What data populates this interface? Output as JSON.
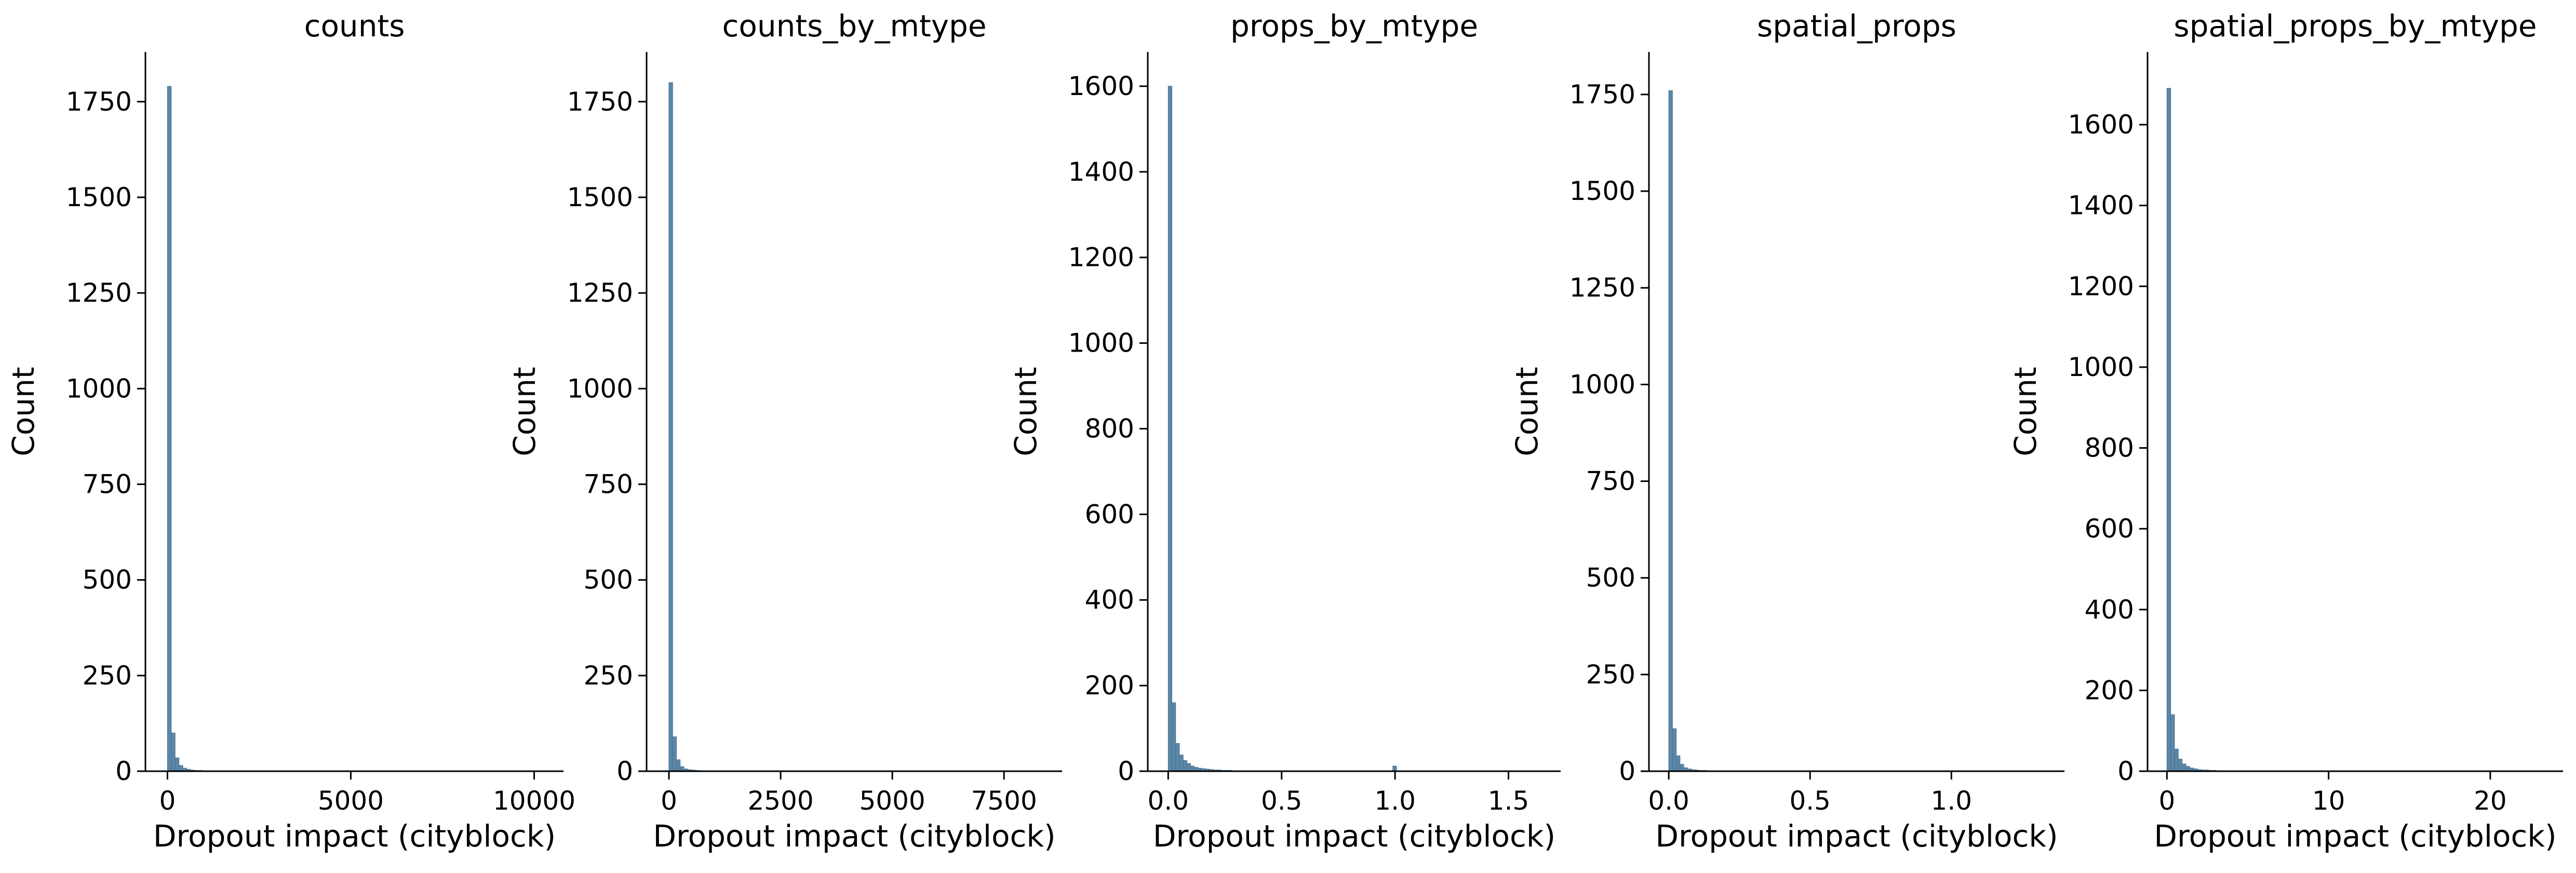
{
  "chart_data": [
    {
      "type": "bar",
      "title": "counts",
      "xlabel": "Dropout impact (cityblock)",
      "ylabel": "Count",
      "xlim": [
        -600,
        10800
      ],
      "ylim": [
        0,
        1880
      ],
      "xticks": [
        0,
        5000,
        10000
      ],
      "xtick_labels": [
        "0",
        "5000",
        "10000"
      ],
      "yticks": [
        0,
        250,
        500,
        750,
        1000,
        1250,
        1500,
        1750
      ],
      "ytick_labels": [
        "0",
        "250",
        "500",
        "750",
        "1000",
        "1250",
        "1500",
        "1750"
      ],
      "bin_start": 0,
      "bin_width": 105,
      "values": [
        1790,
        100,
        35,
        15,
        8,
        5,
        3,
        2,
        2,
        1,
        1,
        1,
        1,
        0,
        0,
        0,
        0,
        0,
        0,
        0,
        0,
        0,
        0,
        0,
        0,
        0,
        0,
        0,
        0,
        0,
        0,
        0,
        0,
        0,
        0,
        0,
        0,
        0,
        0,
        0,
        0,
        0,
        0,
        0,
        0,
        0,
        0,
        0,
        0,
        0,
        0,
        0,
        0,
        0,
        0,
        0,
        0,
        0,
        0,
        0,
        0,
        0,
        0,
        0,
        0,
        0,
        0,
        0,
        0,
        0,
        0,
        0,
        0,
        0,
        0,
        0,
        0,
        0,
        0,
        0,
        0,
        0,
        0,
        0,
        0,
        0,
        0,
        0,
        0,
        0,
        0,
        0,
        0,
        0,
        0,
        0,
        0,
        0,
        0,
        1
      ]
    },
    {
      "type": "bar",
      "title": "counts_by_mtype",
      "xlabel": "Dropout impact (cityblock)",
      "ylabel": "Count",
      "xlim": [
        -500,
        8800
      ],
      "ylim": [
        0,
        1880
      ],
      "xticks": [
        0,
        2500,
        5000,
        7500
      ],
      "xtick_labels": [
        "0",
        "2500",
        "5000",
        "7500"
      ],
      "yticks": [
        0,
        250,
        500,
        750,
        1000,
        1250,
        1500,
        1750
      ],
      "ytick_labels": [
        "0",
        "250",
        "500",
        "750",
        "1000",
        "1250",
        "1500",
        "1750"
      ],
      "bin_start": 0,
      "bin_width": 84,
      "values": [
        1800,
        90,
        30,
        12,
        6,
        4,
        3,
        2,
        1,
        1,
        1,
        0,
        0,
        0,
        0,
        0,
        0,
        0,
        0,
        0,
        0,
        0,
        0,
        0,
        0,
        0,
        0,
        0,
        0,
        0,
        0,
        0,
        0,
        0,
        0,
        0,
        0,
        0,
        0,
        0,
        0,
        0,
        0,
        0,
        0,
        0,
        0,
        0,
        0,
        0,
        0,
        0,
        0,
        0,
        0,
        0,
        0,
        0,
        0,
        0,
        0,
        0,
        0,
        0,
        0,
        0,
        0,
        0,
        0,
        0,
        0,
        0,
        0,
        0,
        0,
        0,
        0,
        0,
        0,
        0,
        0,
        0,
        0,
        0,
        0,
        0,
        0,
        0,
        0,
        0,
        0,
        0,
        0,
        0,
        0,
        0,
        0,
        0,
        0,
        1
      ]
    },
    {
      "type": "bar",
      "title": "props_by_mtype",
      "xlabel": "Dropout impact (cityblock)",
      "ylabel": "Count",
      "xlim": [
        -0.09,
        1.73
      ],
      "ylim": [
        0,
        1680
      ],
      "xticks": [
        0.0,
        0.5,
        1.0,
        1.5
      ],
      "xtick_labels": [
        "0.0",
        "0.5",
        "1.0",
        "1.5"
      ],
      "yticks": [
        0,
        200,
        400,
        600,
        800,
        1000,
        1200,
        1400,
        1600
      ],
      "ytick_labels": [
        "0",
        "200",
        "400",
        "600",
        "800",
        "1000",
        "1200",
        "1400",
        "1600"
      ],
      "bin_start": 0,
      "bin_width": 0.0165,
      "values": [
        1600,
        160,
        65,
        38,
        25,
        18,
        12,
        9,
        7,
        6,
        5,
        4,
        3,
        3,
        2,
        2,
        2,
        1,
        1,
        1,
        1,
        1,
        1,
        1,
        1,
        1,
        0,
        0,
        0,
        0,
        0,
        0,
        0,
        0,
        0,
        0,
        0,
        0,
        0,
        0,
        0,
        0,
        0,
        0,
        0,
        0,
        0,
        0,
        0,
        0,
        0,
        0,
        0,
        0,
        0,
        0,
        0,
        0,
        0,
        0,
        12,
        0,
        0,
        0,
        0,
        0,
        0,
        0,
        0,
        0,
        0,
        0,
        0,
        0,
        0,
        0,
        0,
        0,
        0,
        0,
        0,
        0,
        0,
        0,
        0,
        0,
        0,
        0,
        0,
        0,
        0,
        0,
        0,
        0,
        0,
        0,
        0,
        0,
        0,
        1
      ]
    },
    {
      "type": "bar",
      "title": "spatial_props",
      "xlabel": "Dropout impact (cityblock)",
      "ylabel": "Count",
      "xlim": [
        -0.07,
        1.4
      ],
      "ylim": [
        0,
        1860
      ],
      "xticks": [
        0.0,
        0.5,
        1.0
      ],
      "xtick_labels": [
        "0.0",
        "0.5",
        "1.0"
      ],
      "yticks": [
        0,
        250,
        500,
        750,
        1000,
        1250,
        1500,
        1750
      ],
      "ytick_labels": [
        "0",
        "250",
        "500",
        "750",
        "1000",
        "1250",
        "1500",
        "1750"
      ],
      "bin_start": 0,
      "bin_width": 0.0133,
      "values": [
        1760,
        110,
        40,
        18,
        9,
        6,
        4,
        3,
        2,
        2,
        1,
        1,
        0,
        0,
        0,
        0,
        0,
        0,
        0,
        0,
        0,
        0,
        0,
        0,
        0,
        0,
        0,
        0,
        0,
        0,
        0,
        0,
        0,
        0,
        0,
        0,
        0,
        0,
        0,
        0,
        0,
        0,
        0,
        0,
        0,
        0,
        0,
        0,
        0,
        0,
        0,
        0,
        0,
        0,
        0,
        0,
        0,
        0,
        0,
        0,
        0,
        0,
        0,
        0,
        0,
        0,
        0,
        0,
        0,
        0,
        0,
        0,
        0,
        0,
        0,
        0,
        0,
        0,
        0,
        0,
        0,
        0,
        0,
        0,
        0,
        0,
        0,
        0,
        0,
        0,
        0,
        0,
        0,
        0,
        0,
        0,
        0,
        0,
        0,
        1
      ]
    },
    {
      "type": "bar",
      "title": "spatial_props_by_mtype",
      "xlabel": "Dropout impact (cityblock)",
      "ylabel": "Count",
      "xlim": [
        -1.2,
        24.5
      ],
      "ylim": [
        0,
        1780
      ],
      "xticks": [
        0,
        10,
        20
      ],
      "xtick_labels": [
        "0",
        "10",
        "20"
      ],
      "yticks": [
        0,
        200,
        400,
        600,
        800,
        1000,
        1200,
        1400,
        1600
      ],
      "ytick_labels": [
        "0",
        "200",
        "400",
        "600",
        "800",
        "1000",
        "1200",
        "1400",
        "1600"
      ],
      "bin_start": 0,
      "bin_width": 0.235,
      "values": [
        1690,
        140,
        55,
        30,
        18,
        12,
        8,
        6,
        4,
        3,
        3,
        2,
        2,
        1,
        1,
        1,
        1,
        1,
        0,
        0,
        0,
        0,
        1,
        0,
        0,
        0,
        0,
        0,
        0,
        0,
        0,
        0,
        0,
        0,
        0,
        0,
        0,
        0,
        0,
        0,
        0,
        0,
        0,
        0,
        0,
        0,
        0,
        0,
        0,
        0,
        0,
        0,
        0,
        0,
        0,
        0,
        0,
        0,
        0,
        0,
        0,
        0,
        0,
        0,
        0,
        0,
        0,
        0,
        0,
        0,
        0,
        0,
        0,
        0,
        0,
        0,
        0,
        0,
        0,
        0,
        0,
        0,
        0,
        0,
        0,
        0,
        0,
        0,
        0,
        0,
        0,
        0,
        0,
        0,
        0,
        0,
        0,
        0,
        0,
        1
      ]
    }
  ],
  "colors": {
    "bar_fill": "#5b87a8",
    "bar_edge": "#4a6f8c"
  }
}
